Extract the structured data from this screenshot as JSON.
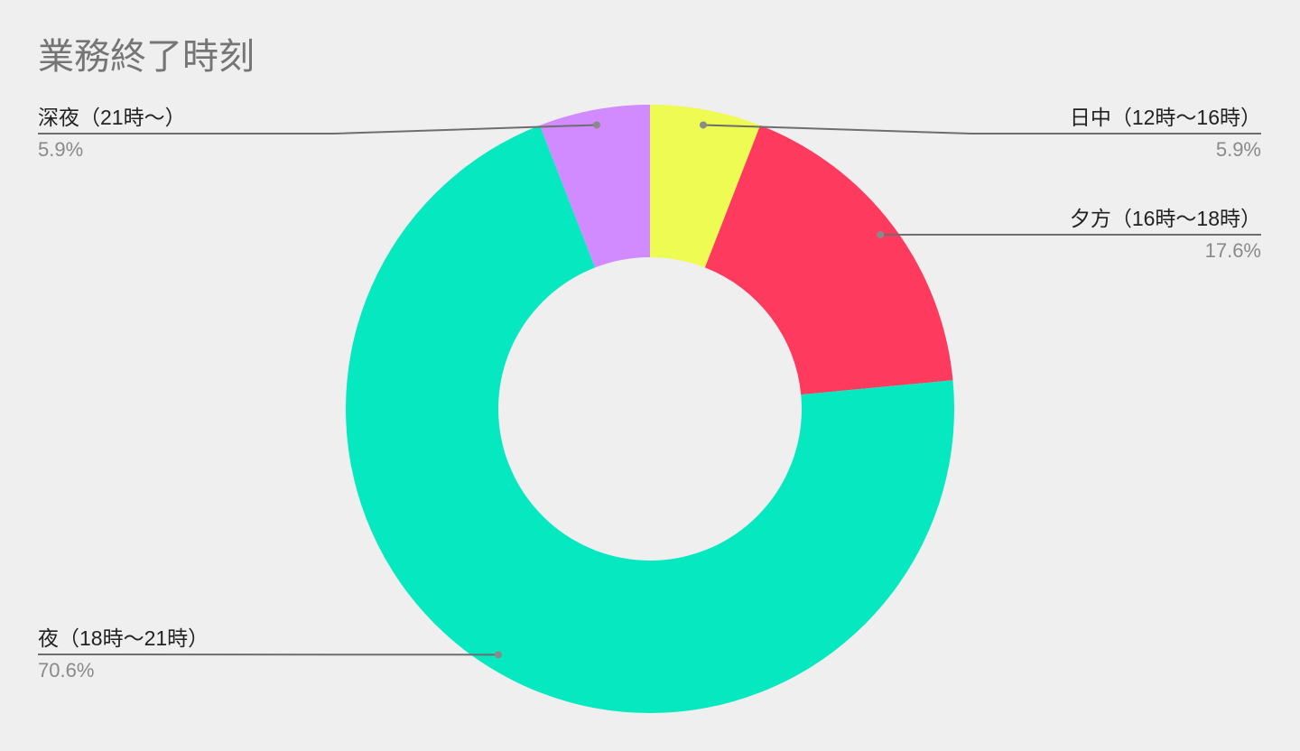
{
  "chart_data": {
    "type": "donut",
    "title": "業務終了時刻",
    "categories": [
      "日中（12時〜16時）",
      "夕方（16時〜18時）",
      "夜（18時〜21時）",
      "深夜（21時〜）"
    ],
    "values": [
      5.9,
      17.6,
      70.6,
      5.9
    ],
    "value_labels": [
      "5.9%",
      "17.6%",
      "70.6%",
      "5.9%"
    ],
    "colors": [
      "#edfb52",
      "#ff3a5f",
      "#05e8c0",
      "#d28aff"
    ]
  }
}
